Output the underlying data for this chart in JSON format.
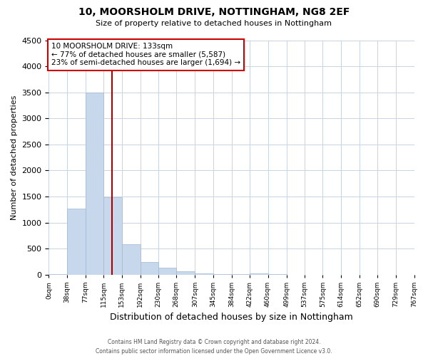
{
  "title": "10, MOORSHOLM DRIVE, NOTTINGHAM, NG8 2EF",
  "subtitle": "Size of property relative to detached houses in Nottingham",
  "xlabel": "Distribution of detached houses by size in Nottingham",
  "ylabel": "Number of detached properties",
  "bar_color": "#c8d8ec",
  "bar_edge_color": "#a0b8d0",
  "vline_color": "#aa0000",
  "vline_x": 133,
  "annotation_text": "10 MOORSHOLM DRIVE: 133sqm\n← 77% of detached houses are smaller (5,587)\n23% of semi-detached houses are larger (1,694) →",
  "bin_edges": [
    0,
    38,
    77,
    115,
    153,
    192,
    230,
    268,
    307,
    345,
    384,
    422,
    460,
    499,
    537,
    575,
    614,
    652,
    690,
    729,
    767
  ],
  "counts": [
    15,
    1270,
    3500,
    1480,
    580,
    240,
    130,
    70,
    30,
    10,
    5,
    25,
    5,
    0,
    0,
    0,
    0,
    0,
    0,
    0
  ],
  "ylim": [
    0,
    4500
  ],
  "footer": "Contains HM Land Registry data © Crown copyright and database right 2024.\nContains public sector information licensed under the Open Government Licence v3.0.",
  "background_color": "#ffffff",
  "grid_color": "#c8d4e0"
}
